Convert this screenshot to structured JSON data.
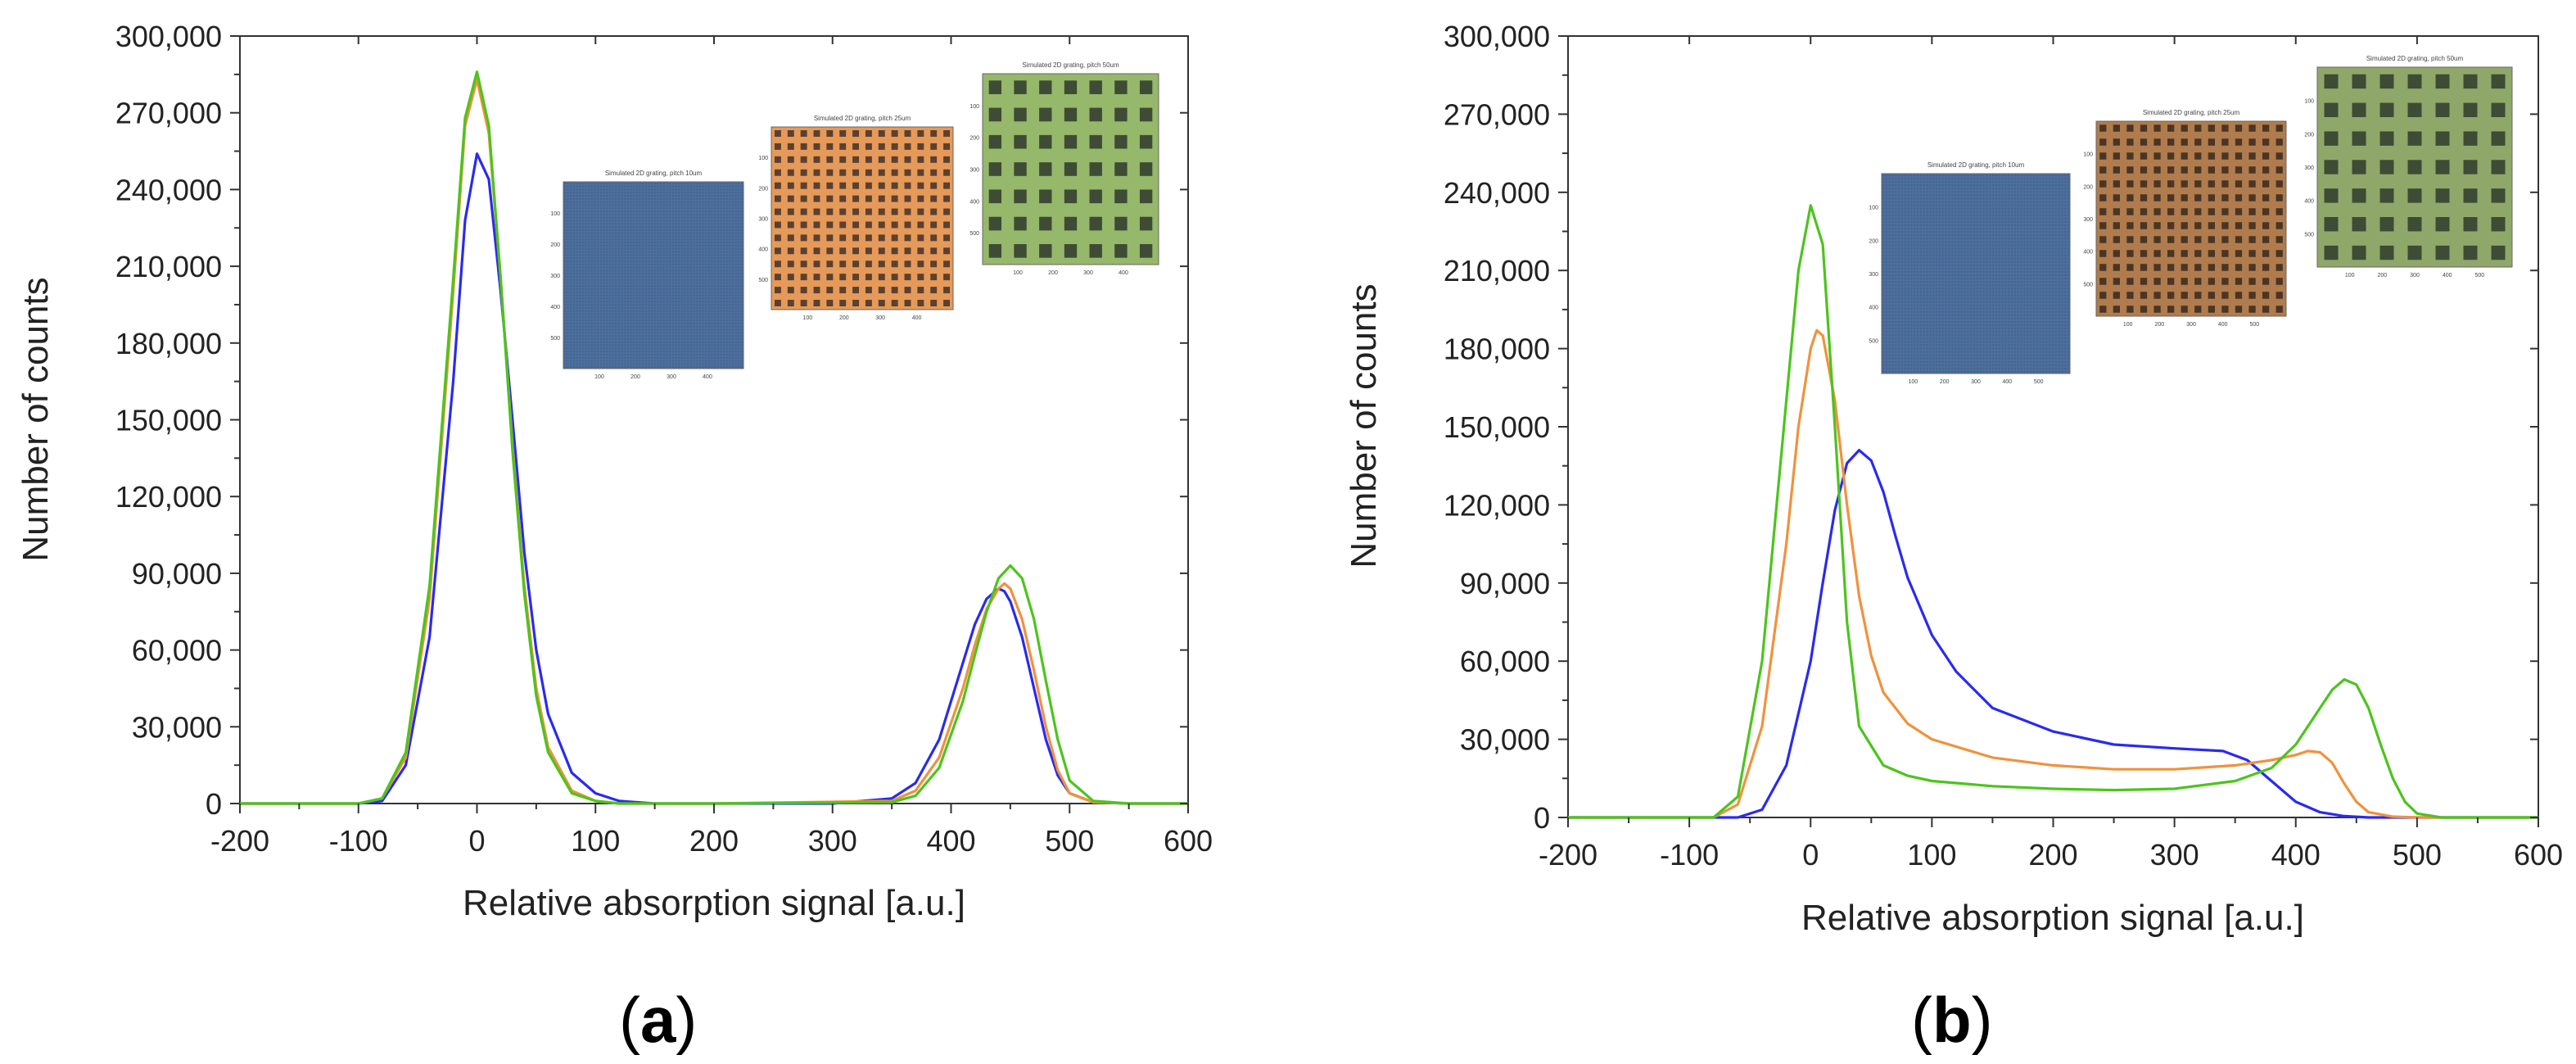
{
  "chart_data": [
    {
      "type": "line",
      "panel_label": "(a)",
      "panel_letter": "a",
      "xlabel": "Relative absorption signal [a.u.]",
      "ylabel": "Number of counts",
      "xlim": [
        -200,
        600
      ],
      "ylim": [
        0,
        300000
      ],
      "xticks": [
        -200,
        -100,
        0,
        100,
        200,
        300,
        400,
        500,
        600
      ],
      "yticks": [
        0,
        30000,
        60000,
        90000,
        120000,
        150000,
        180000,
        210000,
        240000,
        270000,
        300000
      ],
      "xtick_labels": [
        "-200",
        "-100",
        "0",
        "100",
        "200",
        "300",
        "400",
        "500",
        "600"
      ],
      "ytick_labels": [
        "0",
        "30,000",
        "60,000",
        "90,000",
        "120,000",
        "150,000",
        "180,000",
        "210,000",
        "240,000",
        "270,000",
        "300,000"
      ],
      "grid": false,
      "series": [
        {
          "name": "pitch 10um",
          "color": "#2a2af0",
          "x": [
            -200,
            -100,
            -80,
            -60,
            -40,
            -20,
            -10,
            0,
            10,
            20,
            30,
            40,
            50,
            60,
            80,
            100,
            120,
            150,
            200,
            300,
            350,
            370,
            390,
            410,
            420,
            430,
            440,
            445,
            450,
            460,
            470,
            480,
            490,
            500,
            520,
            550,
            600
          ],
          "y": [
            0,
            0,
            1000,
            15000,
            65000,
            165000,
            228000,
            254000,
            244000,
            200000,
            150000,
            98000,
            60000,
            35000,
            12000,
            4000,
            1000,
            0,
            0,
            0,
            2000,
            8000,
            25000,
            55000,
            70000,
            80000,
            84000,
            83000,
            79000,
            65000,
            45000,
            25000,
            11000,
            4000,
            500,
            0,
            0
          ]
        },
        {
          "name": "pitch 25um",
          "color": "#f0923c",
          "x": [
            -200,
            -100,
            -80,
            -60,
            -40,
            -20,
            -10,
            0,
            10,
            20,
            30,
            40,
            50,
            60,
            80,
            100,
            120,
            200,
            350,
            370,
            390,
            410,
            420,
            430,
            440,
            445,
            450,
            460,
            470,
            480,
            490,
            500,
            520,
            550,
            600
          ],
          "y": [
            0,
            0,
            2000,
            18000,
            80000,
            200000,
            265000,
            283000,
            262000,
            205000,
            140000,
            85000,
            45000,
            22000,
            5000,
            1000,
            0,
            0,
            1000,
            5000,
            18000,
            45000,
            62000,
            76000,
            84000,
            86000,
            84000,
            72000,
            52000,
            30000,
            13000,
            4000,
            500,
            0,
            0
          ]
        },
        {
          "name": "pitch 50um",
          "color": "#4cc41c",
          "x": [
            -200,
            -100,
            -80,
            -60,
            -40,
            -20,
            -10,
            0,
            10,
            20,
            30,
            40,
            50,
            60,
            80,
            100,
            120,
            200,
            350,
            370,
            390,
            410,
            420,
            430,
            440,
            450,
            460,
            470,
            480,
            490,
            500,
            520,
            550,
            600
          ],
          "y": [
            0,
            0,
            2000,
            20000,
            85000,
            205000,
            268000,
            286000,
            265000,
            205000,
            138000,
            82000,
            42000,
            20000,
            4000,
            1000,
            0,
            0,
            500,
            3000,
            14000,
            40000,
            58000,
            75000,
            88000,
            93000,
            88000,
            72000,
            48000,
            25000,
            9000,
            1000,
            0,
            0
          ]
        }
      ],
      "insets": [
        {
          "title": "Simulated 2D grating, pitch 10um",
          "fill": "#4d6f9c",
          "hole": "#3c5a85",
          "grid": 60,
          "ticks_x": [
            "100",
            "200",
            "300",
            "400"
          ],
          "ticks_y": [
            "100",
            "200",
            "300",
            "400",
            "500"
          ]
        },
        {
          "title": "Simulated 2D grating, pitch 25um",
          "fill": "#e69a5a",
          "hole": "#5a4030",
          "grid": 14,
          "ticks_x": [
            "100",
            "200",
            "300",
            "400"
          ],
          "ticks_y": [
            "100",
            "200",
            "300",
            "400",
            "500"
          ]
        },
        {
          "title": "Simulated 2D grating, pitch 50um",
          "fill": "#95b86a",
          "hole": "#3e4b35",
          "grid": 7,
          "ticks_x": [
            "100",
            "200",
            "300",
            "400"
          ],
          "ticks_y": [
            "100",
            "200",
            "300",
            "400",
            "500"
          ]
        }
      ]
    },
    {
      "type": "line",
      "panel_label": "(b)",
      "panel_letter": "b",
      "xlabel": "Relative absorption signal [a.u.]",
      "ylabel": "Number of counts",
      "xlim": [
        -200,
        600
      ],
      "ylim": [
        0,
        300000
      ],
      "xticks": [
        -200,
        -100,
        0,
        100,
        200,
        300,
        400,
        500,
        600
      ],
      "yticks": [
        0,
        30000,
        60000,
        90000,
        120000,
        150000,
        180000,
        210000,
        240000,
        270000,
        300000
      ],
      "xtick_labels": [
        "-200",
        "-100",
        "0",
        "100",
        "200",
        "300",
        "400",
        "500",
        "600"
      ],
      "ytick_labels": [
        "0",
        "30,000",
        "60,000",
        "90,000",
        "120,000",
        "150,000",
        "180,000",
        "210,000",
        "240,000",
        "270,000",
        "300,000"
      ],
      "grid": false,
      "series": [
        {
          "name": "pitch 10um",
          "color": "#2a2af0",
          "x": [
            -200,
            -60,
            -40,
            -20,
            0,
            10,
            20,
            30,
            40,
            50,
            60,
            70,
            80,
            100,
            120,
            150,
            200,
            250,
            300,
            340,
            360,
            380,
            400,
            420,
            440,
            460,
            600
          ],
          "y": [
            0,
            0,
            3000,
            20000,
            60000,
            90000,
            118000,
            136000,
            141000,
            137000,
            125000,
            108000,
            92000,
            70000,
            56000,
            42000,
            33000,
            28000,
            26500,
            25500,
            22000,
            14000,
            6000,
            2000,
            500,
            0,
            0
          ]
        },
        {
          "name": "pitch 25um",
          "color": "#f0923c",
          "x": [
            -200,
            -80,
            -60,
            -40,
            -20,
            -10,
            0,
            5,
            10,
            20,
            30,
            40,
            50,
            60,
            80,
            100,
            150,
            200,
            250,
            300,
            350,
            380,
            400,
            410,
            420,
            430,
            440,
            450,
            460,
            480,
            500,
            600
          ],
          "y": [
            0,
            0,
            5000,
            35000,
            105000,
            150000,
            180000,
            187000,
            185000,
            160000,
            120000,
            85000,
            62000,
            48000,
            36000,
            30000,
            23000,
            20000,
            18500,
            18500,
            20000,
            22000,
            24000,
            25500,
            25000,
            21000,
            13000,
            6000,
            2000,
            300,
            0,
            0
          ]
        },
        {
          "name": "pitch 50um",
          "color": "#4cc41c",
          "x": [
            -200,
            -80,
            -60,
            -40,
            -20,
            -10,
            0,
            10,
            20,
            30,
            40,
            60,
            80,
            100,
            150,
            200,
            250,
            300,
            350,
            380,
            400,
            420,
            430,
            440,
            450,
            460,
            470,
            480,
            490,
            500,
            520,
            600
          ],
          "y": [
            0,
            0,
            8000,
            60000,
            160000,
            210000,
            235000,
            220000,
            150000,
            75000,
            35000,
            20000,
            16000,
            14000,
            12000,
            11000,
            10500,
            11000,
            14000,
            19000,
            28000,
            42000,
            49000,
            53000,
            51000,
            42000,
            28000,
            15000,
            6000,
            1500,
            0,
            0
          ]
        }
      ],
      "insets": [
        {
          "title": "Simulated 2D grating, pitch 10um",
          "fill": "#4d6f9c",
          "hole": "#3c5a85",
          "grid": 60,
          "ticks_x": [
            "100",
            "200",
            "300",
            "400",
            "500"
          ],
          "ticks_y": [
            "100",
            "200",
            "300",
            "400",
            "500"
          ]
        },
        {
          "title": "Simulated 2D grating, pitch 25um",
          "fill": "#b07c4e",
          "hole": "#4a3524",
          "grid": 14,
          "ticks_x": [
            "100",
            "200",
            "300",
            "400",
            "500"
          ],
          "ticks_y": [
            "100",
            "200",
            "300",
            "400",
            "500"
          ]
        },
        {
          "title": "Simulated 2D grating, pitch 50um",
          "fill": "#8fa86a",
          "hole": "#3e4b35",
          "grid": 7,
          "ticks_x": [
            "100",
            "200",
            "300",
            "400",
            "500"
          ],
          "ticks_y": [
            "100",
            "200",
            "300",
            "400",
            "500"
          ]
        }
      ]
    }
  ]
}
